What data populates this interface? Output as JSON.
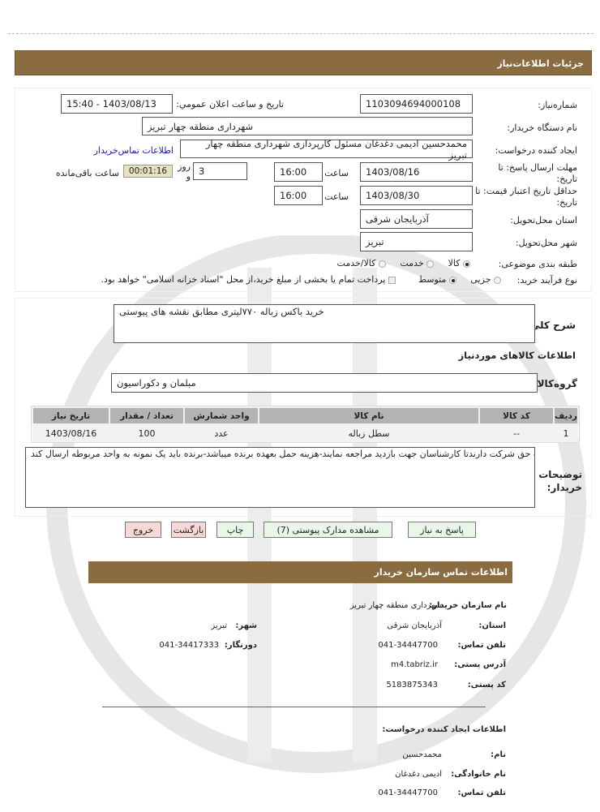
{
  "header": {
    "title": "جزئیات اطلاعات‌نیاز"
  },
  "form": {
    "need_number_label": "شماره‌نیاز:",
    "need_number": "1103094694000108",
    "announce_label": "تاریخ و ساعت اعلان عمومي:",
    "announce_value": "1403/08/13 - 15:40",
    "buyer_label": "نام دستگاه خریدار:",
    "buyer_value": "شهرداری منطقه چهار تبریز",
    "creator_label": "ایجاد کننده درخواست:",
    "creator_value": "محمدحسین ادیمی دغدغان مسئول کارپردازی شهرداری منطقه چهار تبریز",
    "contact_link": "اطلاعات تماس‌خریدار",
    "deadline_label": "مهلت ارسال پاسخ: تا تاریخ:",
    "deadline_date": "1403/08/16",
    "hour_label": "ساعت",
    "deadline_time": "16:00",
    "days_value": "3",
    "days_label": "روز و",
    "timer": "00:01:16",
    "remaining_label": "ساعت باقی‌مانده",
    "validity_label": "حداقل تاریخ اعتبار قیمت: تا تاریخ:",
    "validity_date": "1403/08/30",
    "validity_time": "16:00",
    "province_label": "استان محل‌تحویل:",
    "province_value": "آذربایجان شرقی",
    "city_label": "شهر محل‌تحویل:",
    "city_value": "تبریز",
    "category_label": "طبقه بندی موضوعی:",
    "category_options": [
      "کالا",
      "خدمت",
      "کالا/خدمت"
    ],
    "category_selected": "کالا",
    "process_label": "نوع فرآیند خرید:",
    "process_options": [
      "جزیی",
      "متوسط"
    ],
    "process_selected": "متوسط",
    "treasury_note": "پرداخت تمام یا بخشی از مبلغ خرید،از محل \"اسناد خزانه اسلامی\" خواهد بود."
  },
  "details": {
    "summary_label": "شرح کلی‌نیاز:",
    "summary_value": "خرید باکس زباله ۷۷۰لیتری مطابق نقشه های پیوستی",
    "goods_title": "اطلاعات کالاهای موردنیاز",
    "group_label": "گروه‌کالا:",
    "group_value": "مبلمان و دکوراسیون",
    "table": {
      "headers": [
        "ردیف",
        "کد کالا",
        "نام کالا",
        "واحد شمارش",
        "تعداد / مقدار",
        "تاریخ نیاز"
      ],
      "rows": [
        [
          "1",
          "--",
          "سطل زباله",
          "عدد",
          "100",
          "1403/08/16"
        ]
      ]
    },
    "notes_label": "توضیحات خریدار:",
    "notes_value": "بت حق شرکت دارندتا کارشناسان جهت بازدید مراجعه نمایند-هزینه حمل بعهده برنده میباشد-برنده باید یک نمونه به واحد مربوطه ارسال کند"
  },
  "buttons": {
    "reply": "پاسخ به نیاز",
    "attachments": "مشاهده مدارک پیوستی (7)",
    "print": "چاپ",
    "back": "بازگشت",
    "exit": "خروج"
  },
  "contact": {
    "title": "اطلاعات تماس سازمان خریدار",
    "org_label": "نام سازمان خریدار:",
    "org_value": "شهرداری منطقه چهار تبریز",
    "province_label": "استان:",
    "province_value": "آذربایجان شرقی",
    "city_label": "شهر:",
    "city_value": "تبریز",
    "phone_label": "تلفن تماس:",
    "phone_value": "041-34447700",
    "fax_label": "دورنگار:",
    "fax_value": "041-34417333",
    "address_label": "آدرس پستی:",
    "address_value": "m4.tabriz.ir",
    "postal_label": "کد پستی:",
    "postal_value": "5183875343",
    "creator_title": "اطلاعات ایجاد کننده درخواست:",
    "name_label": "نام:",
    "name_value": "محمدحسین",
    "family_label": "نام خانوادگی:",
    "family_value": "ادیمی دغدغان",
    "cphone_label": "تلفن تماس:",
    "cphone_value": "041-34447700"
  },
  "colors": {
    "header": "#8b6c41",
    "timer_bg": "#e6e2bd",
    "link": "#1a1aa6"
  }
}
